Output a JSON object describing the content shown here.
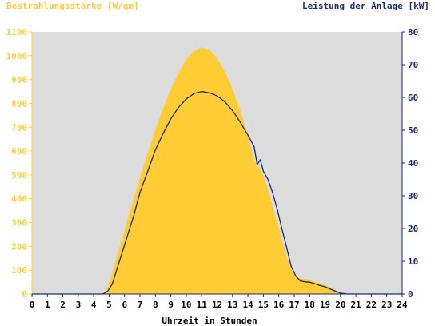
{
  "chart_data": {
    "type": "area",
    "left_axis_label": "Bestrahlungsstärke [W/qm]",
    "right_axis_label": "Leistung der Anlage [kW]",
    "xlabel": "Uhrzeit in Stunden",
    "x_range": [
      0,
      24
    ],
    "left_range": [
      0,
      1100
    ],
    "right_range": [
      0,
      80
    ],
    "x_ticks": [
      "0",
      "1",
      "2",
      "3",
      "4",
      "5",
      "6",
      "7",
      "8",
      "9",
      "10",
      "11",
      "12",
      "13",
      "14",
      "15",
      "16",
      "17",
      "18",
      "19",
      "20",
      "21",
      "22",
      "23",
      "24"
    ],
    "left_ticks": [
      "0",
      "100",
      "200",
      "300",
      "400",
      "500",
      "600",
      "700",
      "800",
      "900",
      "1000",
      "1100"
    ],
    "right_ticks": [
      "0",
      "10",
      "20",
      "30",
      "40",
      "50",
      "60",
      "70",
      "80"
    ],
    "grid": false,
    "colors": {
      "plot_background": "#dcdcdc",
      "irradiance_fill": "#ffcc33",
      "power_line": "#1a2a6c",
      "left_axis_text": "#ffcc33",
      "right_axis_text": "#1a2a6c",
      "x_axis_text": "#000000"
    },
    "series": [
      {
        "axis": "left",
        "style": "area",
        "x": [
          0,
          4.5,
          4.8,
          5.0,
          5.3,
          5.6,
          6.0,
          6.5,
          7.0,
          7.5,
          8.0,
          8.5,
          9.0,
          9.5,
          10.0,
          10.5,
          11.0,
          11.5,
          12.0,
          12.5,
          13.0,
          13.5,
          14.0,
          14.4,
          14.7,
          15.0,
          15.3,
          15.6,
          16.0,
          16.3,
          16.6,
          16.9,
          17.2,
          17.5,
          17.8,
          18.0,
          18.3,
          18.7,
          19.0,
          19.3,
          19.6,
          19.9,
          20.2,
          20.5,
          24
        ],
        "y": [
          0,
          0,
          15,
          50,
          110,
          180,
          270,
          380,
          490,
          590,
          690,
          780,
          860,
          930,
          985,
          1020,
          1035,
          1025,
          990,
          935,
          860,
          770,
          670,
          560,
          530,
          500,
          440,
          370,
          280,
          200,
          140,
          95,
          70,
          64,
          62,
          60,
          52,
          45,
          38,
          30,
          18,
          8,
          2,
          0,
          0
        ]
      },
      {
        "axis": "right",
        "style": "line",
        "x": [
          0,
          4.6,
          4.9,
          5.2,
          5.5,
          5.8,
          6.2,
          6.6,
          7.0,
          7.5,
          8.0,
          8.5,
          9.0,
          9.5,
          10.0,
          10.5,
          11.0,
          11.5,
          12.0,
          12.5,
          13.0,
          13.5,
          14.0,
          14.4,
          14.6,
          14.8,
          15.0,
          15.3,
          15.6,
          15.9,
          16.2,
          16.5,
          16.8,
          17.1,
          17.4,
          17.7,
          18.0,
          18.3,
          18.6,
          19.0,
          19.3,
          19.6,
          20.0,
          20.4,
          24
        ],
        "y": [
          0,
          0,
          0.8,
          3,
          7.5,
          12,
          18,
          24,
          31,
          37.5,
          44,
          49,
          53.5,
          57,
          59.5,
          61.2,
          61.8,
          61.4,
          60.5,
          58.7,
          56,
          52.5,
          48.5,
          45,
          39.5,
          41,
          37.5,
          35,
          31,
          26,
          20,
          14.5,
          8.5,
          5.5,
          4,
          3.7,
          3.6,
          3.2,
          2.7,
          2.2,
          1.6,
          1.0,
          0.3,
          0,
          0
        ]
      }
    ]
  }
}
